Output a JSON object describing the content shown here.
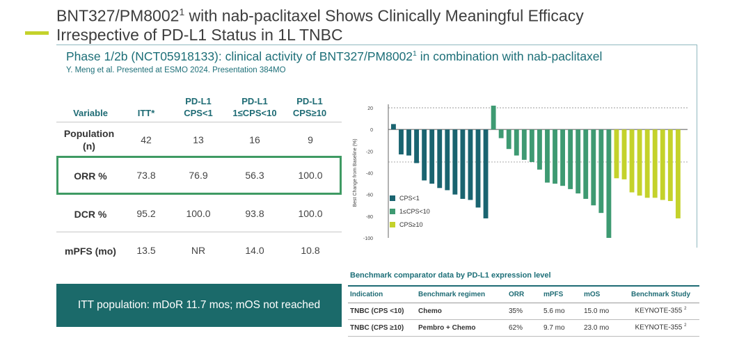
{
  "slide": {
    "title_line1": "BNT327/PM8002",
    "title_sup": "1",
    "title_line1_rest": " with nab-paclitaxel Shows Clinically Meaningful Efficacy",
    "title_line2": "Irrespective of PD-L1 Status in 1L TNBC",
    "accent_color": "#c4d22b"
  },
  "panel": {
    "title_pre": "Phase 1/2b (NCT05918133): clinical activity of BNT327/PM8002",
    "title_sup": "1",
    "title_post": " in combination with nab-paclitaxel",
    "subtitle": "Y. Meng et al. Presented at ESMO 2024. Presentation 384MO"
  },
  "efficacy_table": {
    "headers": [
      "Variable",
      "ITT*",
      "PD-L1\nCPS<1",
      "PD-L1\n1≤CPS<10",
      "PD-L1\nCPS≥10"
    ],
    "rows": [
      {
        "label": "Population\n(n)",
        "values": [
          "42",
          "13",
          "16",
          "9"
        ]
      },
      {
        "label": "ORR %",
        "values": [
          "73.8",
          "76.9",
          "56.3",
          "100.0"
        ],
        "highlighted": true
      },
      {
        "label": "DCR %",
        "values": [
          "95.2",
          "100.0",
          "93.8",
          "100.0"
        ]
      },
      {
        "label": "mPFS (mo)",
        "values": [
          "13.5",
          "NR",
          "14.0",
          "10.8"
        ]
      }
    ],
    "highlight_color": "#3e9a63"
  },
  "itt_banner": "ITT population: mDoR 11.7 mos; mOS not reached",
  "chart_data": {
    "type": "bar",
    "ylabel": "Best Change from Baseline (%)",
    "ylim": [
      -100,
      20
    ],
    "yticks": [
      20,
      0,
      -20,
      -40,
      -60,
      -80,
      -100
    ],
    "reference_lines": [
      20,
      -30
    ],
    "legend_position": "bottom-left",
    "series": [
      {
        "name": "CPS<1",
        "color": "#1a6470",
        "values": [
          5,
          -23,
          -24,
          -31,
          -47,
          -50,
          -54,
          -56,
          -60,
          -64,
          -65,
          -72,
          -82
        ]
      },
      {
        "name": "1≤CPS<10",
        "color": "#3e9a72",
        "values": [
          22,
          -8,
          -18,
          -24,
          -28,
          -30,
          -37,
          -49,
          -50,
          -52,
          -55,
          -59,
          -64,
          -70,
          -77,
          -100
        ]
      },
      {
        "name": "CPS≥10",
        "color": "#c4d22b",
        "values": [
          -45,
          -46,
          -58,
          -61,
          -63,
          -63,
          -65,
          -66,
          -82
        ]
      }
    ]
  },
  "benchmark": {
    "title": "Benchmark comparator data by PD-L1 expression level",
    "headers": [
      "Indication",
      "Benchmark regimen",
      "ORR",
      "mPFS",
      "mOS",
      "Benchmark Study"
    ],
    "rows": [
      {
        "indication": "TNBC (CPS <10)",
        "regimen": "Chemo",
        "orr": "35%",
        "mpfs": "5.6 mo",
        "mos": "15.0 mo",
        "study": "KEYNOTE-355",
        "study_sup": "2"
      },
      {
        "indication": "TNBC (CPS ≥10)",
        "regimen": "Pembro + Chemo",
        "orr": "62%",
        "mpfs": "9.7 mo",
        "mos": "23.0 mo",
        "study": "KEYNOTE-355",
        "study_sup": "2"
      }
    ]
  }
}
